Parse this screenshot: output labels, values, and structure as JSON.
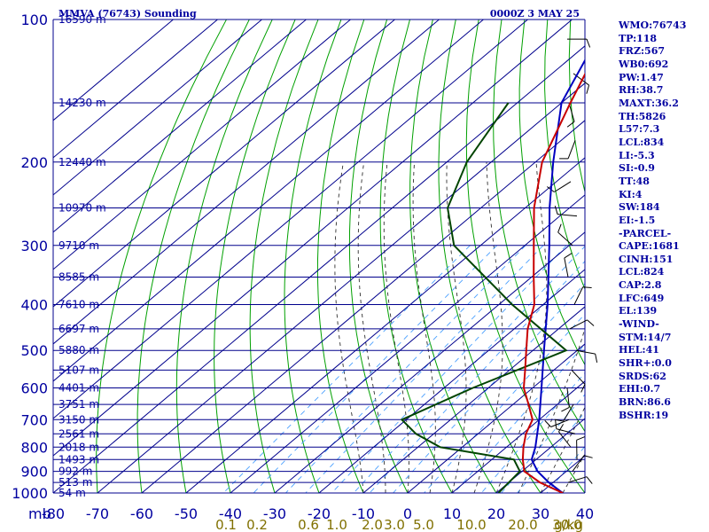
{
  "chart_data": {
    "type": "skew-t sounding",
    "title": "MMVA (76743) Sounding",
    "date": "0000Z  3 MAY 25",
    "pressure_labels": [
      {
        "p": 100,
        "text": "100"
      },
      {
        "p": 200,
        "text": "200"
      },
      {
        "p": 300,
        "text": "300"
      },
      {
        "p": 400,
        "text": "400"
      },
      {
        "p": 500,
        "text": "500"
      },
      {
        "p": 600,
        "text": "600"
      },
      {
        "p": 700,
        "text": "700"
      },
      {
        "p": 800,
        "text": "800"
      },
      {
        "p": 900,
        "text": "900"
      },
      {
        "p": 1000,
        "text": "1000"
      }
    ],
    "pressure_axis_unit": "mb",
    "height_labels": [
      {
        "p": 100,
        "text": "16590 m"
      },
      {
        "p": 150,
        "text": "14230 m"
      },
      {
        "p": 200,
        "text": "12440 m"
      },
      {
        "p": 250,
        "text": "10970 m"
      },
      {
        "p": 300,
        "text": "9710 m"
      },
      {
        "p": 350,
        "text": "8585 m"
      },
      {
        "p": 400,
        "text": "7610 m"
      },
      {
        "p": 450,
        "text": "6697 m"
      },
      {
        "p": 500,
        "text": "5880 m"
      },
      {
        "p": 550,
        "text": "5107 m"
      },
      {
        "p": 600,
        "text": "4401 m"
      },
      {
        "p": 650,
        "text": "3751 m"
      },
      {
        "p": 700,
        "text": "3150 m"
      },
      {
        "p": 750,
        "text": "2561 m"
      },
      {
        "p": 800,
        "text": "2018 m"
      },
      {
        "p": 850,
        "text": "1493 m"
      },
      {
        "p": 900,
        "text": "992 m"
      },
      {
        "p": 950,
        "text": "513 m"
      },
      {
        "p": 1000,
        "text": "54 m"
      }
    ],
    "temperature_ticks": [
      "-80",
      "-70",
      "-60",
      "-50",
      "-40",
      "-30",
      "-20",
      "-10",
      "0",
      "10",
      "20",
      "30",
      "40"
    ],
    "mixing_ratio_labels": [
      "0.1",
      "0.2",
      "0.6",
      "1.0",
      "2.0",
      "3.0",
      "5.0",
      "10.0",
      "20.0",
      "30.0"
    ],
    "mixing_ratio_unit": "g/kg",
    "x_range_celsius": [
      -80,
      40
    ],
    "y_range_mb": [
      100,
      1000
    ],
    "y_scale": "log",
    "temperature_profile": [
      {
        "p": 1000,
        "t": 35.0
      },
      {
        "p": 950,
        "t": 27.0
      },
      {
        "p": 900,
        "t": 20.5
      },
      {
        "p": 850,
        "t": 17.0
      },
      {
        "p": 800,
        "t": 13.8
      },
      {
        "p": 750,
        "t": 10.8
      },
      {
        "p": 700,
        "t": 8.5
      },
      {
        "p": 650,
        "t": 3.5
      },
      {
        "p": 600,
        "t": -2.0
      },
      {
        "p": 550,
        "t": -6.5
      },
      {
        "p": 500,
        "t": -11.5
      },
      {
        "p": 450,
        "t": -17.0
      },
      {
        "p": 400,
        "t": -22.0
      },
      {
        "p": 350,
        "t": -29.5
      },
      {
        "p": 300,
        "t": -38.0
      },
      {
        "p": 250,
        "t": -48.0
      },
      {
        "p": 200,
        "t": -58.5
      },
      {
        "p": 150,
        "t": -68.0
      },
      {
        "p": 120,
        "t": -75.0
      },
      {
        "p": 100,
        "t": -77.0
      }
    ],
    "dewpoint_profile": [
      {
        "p": 1000,
        "t": 20.5
      },
      {
        "p": 950,
        "t": 20.0
      },
      {
        "p": 900,
        "t": 19.5
      },
      {
        "p": 850,
        "t": 15.0
      },
      {
        "p": 800,
        "t": -5.0
      },
      {
        "p": 750,
        "t": -14.0
      },
      {
        "p": 700,
        "t": -21.0
      },
      {
        "p": 600,
        "t": -13.5
      },
      {
        "p": 500,
        "t": -2.5
      },
      {
        "p": 400,
        "t": -27.0
      },
      {
        "p": 300,
        "t": -56.0
      },
      {
        "p": 250,
        "t": -67.5
      },
      {
        "p": 200,
        "t": -75.5
      },
      {
        "p": 150,
        "t": -82.0
      }
    ],
    "parcel_profile": [
      {
        "p": 1000,
        "t": 35.0
      },
      {
        "p": 950,
        "t": 29.0
      },
      {
        "p": 900,
        "t": 23.5
      },
      {
        "p": 850,
        "t": 19.0
      },
      {
        "p": 800,
        "t": 16.5
      },
      {
        "p": 700,
        "t": 10.0
      },
      {
        "p": 600,
        "t": 2.0
      },
      {
        "p": 500,
        "t": -7.5
      },
      {
        "p": 400,
        "t": -19.0
      },
      {
        "p": 300,
        "t": -34.5
      },
      {
        "p": 250,
        "t": -44.5
      },
      {
        "p": 200,
        "t": -56.0
      },
      {
        "p": 150,
        "t": -70.0
      },
      {
        "p": 100,
        "t": -82.0
      }
    ],
    "colors": {
      "isobar": "#00008c",
      "isotherm": "#00008c",
      "dry_adiabat": "#00a000",
      "moist_adiabat": "#303030",
      "mixing_ratio": "#4aa0ff",
      "temperature": "#c80000",
      "dewpoint": "#004400",
      "parcel": "#0000c0",
      "label": "#0000a0",
      "ratio_label": "#807000"
    }
  },
  "stats": [
    "WMO:76743",
    "TP:118",
    "FRZ:567",
    "WB0:692",
    "PW:1.47",
    "RH:38.7",
    "MAXT:36.2",
    "TH:5826",
    "L57:7.3",
    "LCL:834",
    "LI:-5.3",
    "SI:-0.9",
    "TT:48",
    "KI:4",
    "SW:184",
    "EI:-1.5",
    "-PARCEL-",
    "CAPE:1681",
    "CINH:151",
    "LCL:824",
    "CAP:2.8",
    "LFC:649",
    "EL:139",
    "-WIND-",
    "STM:14/7",
    "HEL:41",
    "SHR+:0.0",
    "SRDS:62",
    "EHI:0.7",
    "BRN:86.6",
    "BSHR:19"
  ]
}
